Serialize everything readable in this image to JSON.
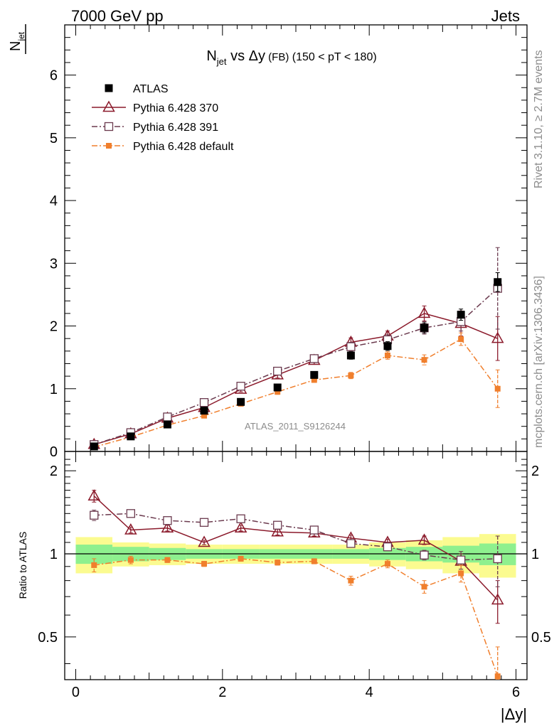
{
  "header": {
    "left": "7000 GeV pp",
    "right": "Jets"
  },
  "side_labels": {
    "top": "Rivet 3.1.10, ≥ 2.7M events",
    "bottom": "mcplots.cern.ch [arXiv:1306.3436]"
  },
  "chart_data": [
    {
      "type": "scatter",
      "panel": "main",
      "title_parts": {
        "n": "N",
        "sub": "jet",
        "vs": " vs Δy",
        "fb": " (FB)",
        "range": " (150 < pT < 180)"
      },
      "ylabel_parts": {
        "n": "N",
        "sub": "jet"
      },
      "watermark": "ATLAS_2011_S9126244",
      "xlim": [
        -0.15,
        6.15
      ],
      "ylim": [
        0,
        6.8
      ],
      "yticks": [
        "0",
        "1",
        "2",
        "3",
        "4",
        "5",
        "6"
      ],
      "x": [
        0.25,
        0.75,
        1.25,
        1.75,
        2.25,
        2.75,
        3.25,
        3.75,
        4.25,
        4.75,
        5.25,
        5.75
      ],
      "series": [
        {
          "name": "ATLAS",
          "color": "#000000",
          "marker": "filled-square",
          "values": [
            0.08,
            0.24,
            0.43,
            0.65,
            0.79,
            1.02,
            1.22,
            1.53,
            1.68,
            1.97,
            2.18,
            2.7
          ],
          "errors": [
            0.01,
            0.02,
            0.02,
            0.03,
            0.04,
            0.04,
            0.05,
            0.06,
            0.07,
            0.08,
            0.09,
            0.15
          ]
        },
        {
          "name": "Pythia 6.428 370",
          "color": "#8b1a2b",
          "marker": "open-triangle",
          "line": "solid",
          "values": [
            0.11,
            0.28,
            0.53,
            0.7,
            0.99,
            1.22,
            1.45,
            1.74,
            1.84,
            2.2,
            2.04,
            1.8
          ],
          "errors": [
            0.01,
            0.02,
            0.03,
            0.03,
            0.04,
            0.05,
            0.06,
            0.07,
            0.08,
            0.12,
            0.2,
            0.35
          ]
        },
        {
          "name": "Pythia 6.428 391",
          "color": "#6b3a4e",
          "marker": "open-square",
          "line": "dashdot",
          "values": [
            0.11,
            0.3,
            0.55,
            0.78,
            1.04,
            1.28,
            1.48,
            1.67,
            1.78,
            1.97,
            2.07,
            2.6
          ],
          "errors": [
            0.01,
            0.02,
            0.03,
            0.03,
            0.04,
            0.05,
            0.06,
            0.07,
            0.08,
            0.1,
            0.15,
            0.65
          ]
        },
        {
          "name": "Pythia 6.428 default",
          "color": "#f07f2d",
          "marker": "filled-small-square",
          "line": "dashdot",
          "values": [
            0.07,
            0.23,
            0.42,
            0.57,
            0.76,
            0.95,
            1.14,
            1.21,
            1.53,
            1.46,
            1.79,
            1.0
          ],
          "errors": [
            0.01,
            0.02,
            0.02,
            0.03,
            0.03,
            0.04,
            0.04,
            0.05,
            0.06,
            0.08,
            0.1,
            0.3
          ]
        }
      ]
    },
    {
      "type": "scatter",
      "panel": "ratio",
      "ylabel": "Ratio to ATLAS",
      "xlabel": "|Δy|",
      "xlim": [
        -0.15,
        6.15
      ],
      "ylim": [
        0.35,
        2.35
      ],
      "yscale": "log",
      "yticks_left": [
        "0.5",
        "1",
        "2"
      ],
      "yticks_right": [
        "0.5",
        "1",
        "2"
      ],
      "xticks": [
        "0",
        "2",
        "4",
        "6"
      ],
      "band_edges": [
        0,
        0.5,
        1,
        1.5,
        2,
        2.5,
        3,
        3.5,
        4,
        4.5,
        5,
        5.5,
        6
      ],
      "band_inner": [
        [
          0.92,
          1.08
        ],
        [
          0.94,
          1.06
        ],
        [
          0.95,
          1.05
        ],
        [
          0.96,
          1.04
        ],
        [
          0.96,
          1.04
        ],
        [
          0.96,
          1.04
        ],
        [
          0.96,
          1.04
        ],
        [
          0.96,
          1.04
        ],
        [
          0.95,
          1.05
        ],
        [
          0.94,
          1.06
        ],
        [
          0.93,
          1.07
        ],
        [
          0.91,
          1.09
        ]
      ],
      "band_outer": [
        [
          0.85,
          1.15
        ],
        [
          0.9,
          1.1
        ],
        [
          0.91,
          1.09
        ],
        [
          0.92,
          1.08
        ],
        [
          0.92,
          1.08
        ],
        [
          0.92,
          1.08
        ],
        [
          0.92,
          1.08
        ],
        [
          0.92,
          1.08
        ],
        [
          0.9,
          1.1
        ],
        [
          0.88,
          1.12
        ],
        [
          0.85,
          1.15
        ],
        [
          0.82,
          1.18
        ]
      ],
      "x": [
        0.25,
        0.75,
        1.25,
        1.75,
        2.25,
        2.75,
        3.25,
        3.75,
        4.25,
        4.75,
        5.25,
        5.75
      ],
      "series": [
        {
          "name": "Pythia 6.428 370",
          "color": "#8b1a2b",
          "marker": "open-triangle",
          "line": "solid",
          "values": [
            1.62,
            1.22,
            1.24,
            1.1,
            1.24,
            1.2,
            1.19,
            1.14,
            1.1,
            1.12,
            0.94,
            0.68
          ],
          "errors": [
            0.08,
            0.03,
            0.03,
            0.02,
            0.03,
            0.03,
            0.03,
            0.03,
            0.03,
            0.04,
            0.06,
            0.12
          ]
        },
        {
          "name": "Pythia 6.428 391",
          "color": "#6b3a4e",
          "marker": "open-square",
          "line": "dashdot",
          "values": [
            1.38,
            1.4,
            1.32,
            1.3,
            1.34,
            1.27,
            1.22,
            1.09,
            1.06,
            0.99,
            0.95,
            0.96
          ],
          "errors": [
            0.06,
            0.04,
            0.03,
            0.02,
            0.03,
            0.03,
            0.03,
            0.03,
            0.03,
            0.04,
            0.07,
            0.2
          ]
        },
        {
          "name": "Pythia 6.428 default",
          "color": "#f07f2d",
          "marker": "filled-small-square",
          "line": "dashdot",
          "values": [
            0.91,
            0.95,
            0.95,
            0.92,
            0.96,
            0.93,
            0.94,
            0.8,
            0.92,
            0.76,
            0.85,
            0.36
          ],
          "errors": [
            0.05,
            0.03,
            0.02,
            0.02,
            0.02,
            0.02,
            0.02,
            0.03,
            0.03,
            0.04,
            0.06,
            0.1
          ]
        }
      ]
    }
  ]
}
